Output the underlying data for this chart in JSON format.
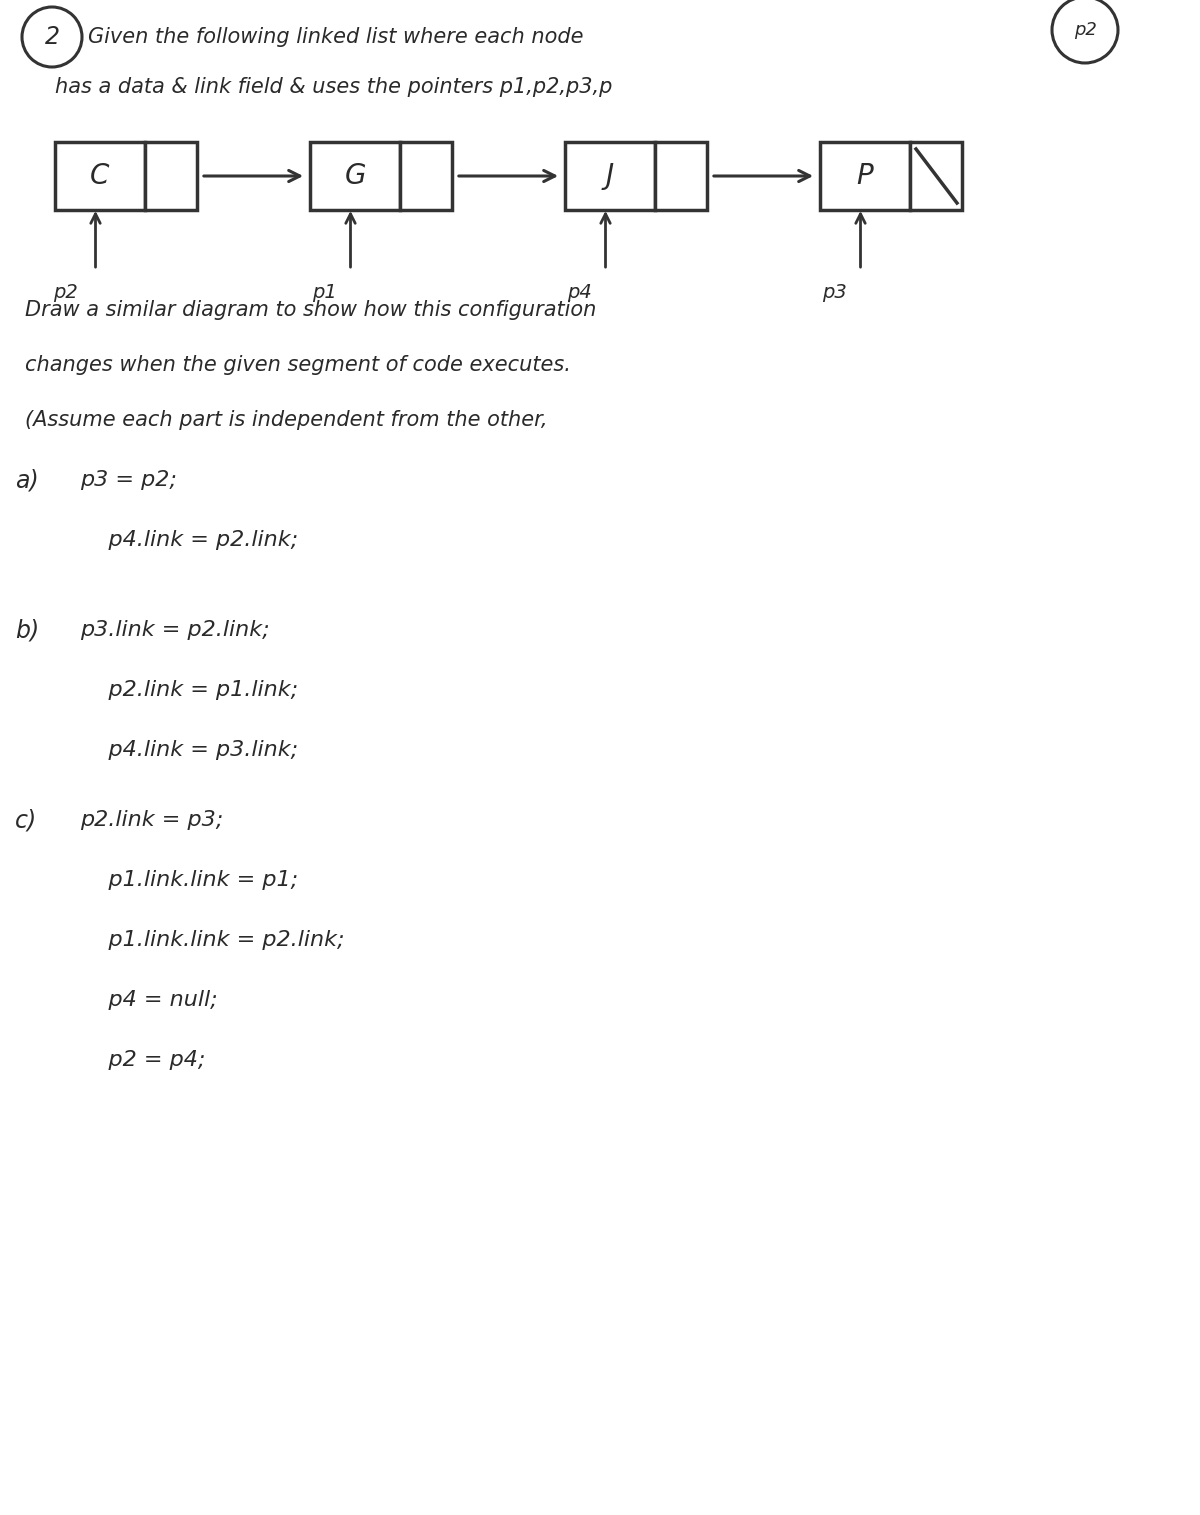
{
  "bg_color": "#ffffff",
  "title_circle_text": "2",
  "p2_circle_text": "p2",
  "line1": "Given the following linked list where each node",
  "line2": "has a data & link field & uses the pointers p1,p2,p3,p",
  "nodes": [
    "C",
    "G",
    "J",
    "P"
  ],
  "pointers": [
    "p2",
    "p1",
    "p4",
    "p3"
  ],
  "draw_text": "Draw a similar diagram to show how this configuration",
  "draw_text2": "changes when the given segment of code executes.",
  "draw_text3": "(Assume each part is independent from the other,",
  "section_a_label": "a)",
  "section_a_line1": "p3 = p2;",
  "section_a_line2": "    p4.link = p2.link;",
  "section_b_label": "b)",
  "section_b_line1": "p3.link = p2.link;",
  "section_b_line2": "    p2.link = p1.link;",
  "section_b_line3": "    p4.link = p3.link;",
  "section_c_label": "c)",
  "section_c_line1": "p2.link = p3;",
  "section_c_line2": "    p1.link.link = p1;",
  "section_c_line3": "    p1.link.link = p2.link;",
  "section_c_line4": "    p4 = null;",
  "section_c_line5": "    p2 = p4;"
}
